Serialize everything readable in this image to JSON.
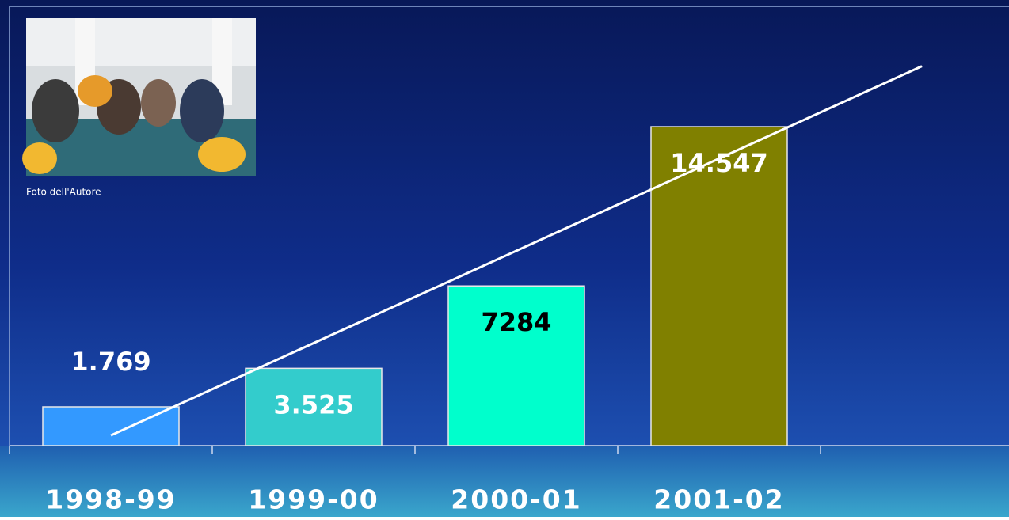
{
  "chart_data": {
    "type": "bar",
    "caption": "Foto dell'Autore",
    "categories": [
      "1998-99",
      "1999-00",
      "2000-01",
      "2001-02",
      null
    ],
    "values": [
      1769,
      3525,
      7284,
      14547,
      null
    ],
    "value_labels": [
      "1.769",
      "3.525",
      "7284",
      "14.547",
      null
    ],
    "colors": [
      "#3399ff",
      "#33cccc",
      "#00ffcc",
      "#808000",
      null
    ],
    "ylim": [
      0,
      20000
    ],
    "trendline": true
  }
}
